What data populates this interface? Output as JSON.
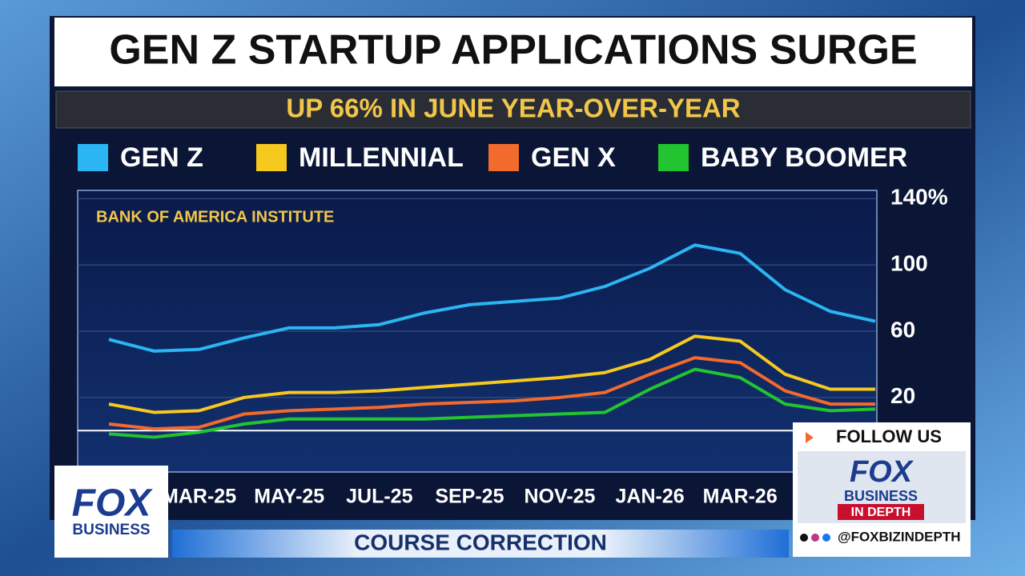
{
  "chart_data": {
    "type": "line",
    "title": "GEN Z STARTUP APPLICATIONS SURGE",
    "subtitle": "UP 66% IN JUNE YEAR-OVER-YEAR",
    "source": "BANK OF AMERICA INSTITUTE",
    "categories": [
      null,
      null,
      "MAR-25",
      null,
      "MAY-25",
      null,
      "JUL-25",
      null,
      "SEP-25",
      null,
      "NOV-25",
      null,
      "JAN-26",
      null,
      "MAR-26",
      null,
      null,
      null
    ],
    "series": [
      {
        "name": "GEN Z",
        "color": "#2bb5f2",
        "values": [
          55,
          48,
          49,
          56,
          62,
          62,
          64,
          71,
          76,
          78,
          80,
          87,
          98,
          112,
          107,
          85,
          72,
          66
        ]
      },
      {
        "name": "MILLENNIAL",
        "color": "#f7c81e",
        "values": [
          16,
          11,
          12,
          20,
          23,
          23,
          24,
          26,
          28,
          30,
          32,
          35,
          43,
          57,
          54,
          34,
          25,
          25
        ]
      },
      {
        "name": "GEN X",
        "color": "#f26a2c",
        "values": [
          4,
          1,
          2,
          10,
          12,
          13,
          14,
          16,
          17,
          18,
          20,
          23,
          34,
          44,
          41,
          24,
          16,
          16
        ]
      },
      {
        "name": "BABY BOOMER",
        "color": "#22c42f",
        "values": [
          -2,
          -4,
          -1,
          4,
          7,
          7,
          7,
          7,
          8,
          9,
          10,
          11,
          25,
          37,
          32,
          16,
          12,
          13
        ]
      }
    ],
    "ylim": [
      -25,
      145
    ],
    "yticks": [
      20,
      60,
      100,
      {
        "value": 140,
        "label": "140%"
      }
    ],
    "grid": true
  },
  "screen": {
    "logo": {
      "top": "FOX",
      "bottom": "BUSINESS"
    },
    "banner": "COURSE CORRECTION",
    "follow": {
      "heading": "FOLLOW US",
      "brand": "FOX",
      "line": "BUSINESS",
      "tag": "IN DEPTH",
      "handle": "@FOXBIZINDEPTH"
    }
  }
}
